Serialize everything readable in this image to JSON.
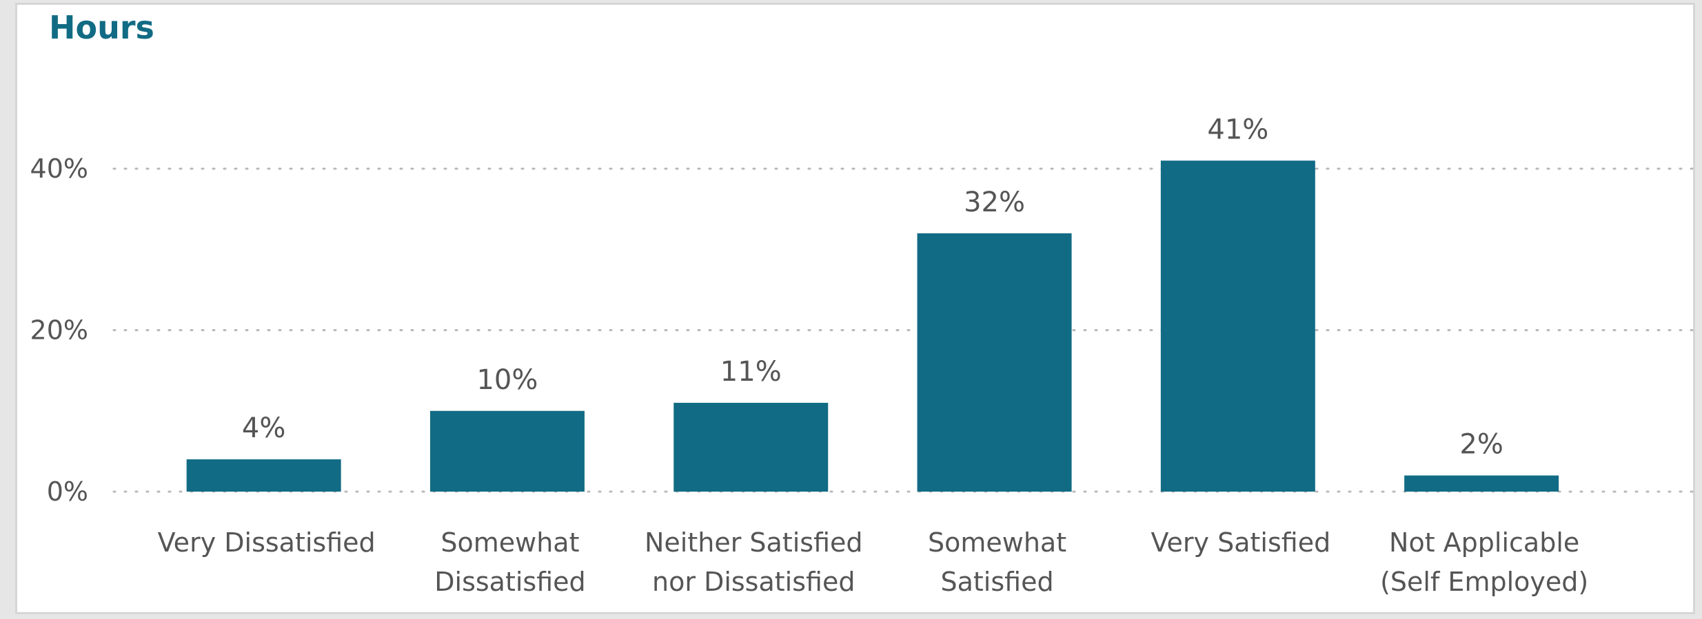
{
  "chart_data": {
    "type": "bar",
    "title": "Hours",
    "categories": [
      [
        "Very Dissatisfied"
      ],
      [
        "Somewhat",
        "Dissatisfied"
      ],
      [
        "Neither Satisfied",
        "nor Dissatisfied"
      ],
      [
        "Somewhat",
        "Satisfied"
      ],
      [
        "Very Satisfied"
      ],
      [
        "Not Applicable",
        "(Self Employed)"
      ]
    ],
    "values": [
      4,
      10,
      11,
      32,
      41,
      2
    ],
    "value_labels": [
      "4%",
      "10%",
      "11%",
      "32%",
      "41%",
      "2%"
    ],
    "yticks": [
      0,
      20,
      40
    ],
    "ytick_labels": [
      "0%",
      "20%",
      "40%"
    ],
    "ylim": [
      0,
      45
    ],
    "grid": "horizontal dotted",
    "bar_color": "#126b84",
    "grid_color": "#b8b8b8",
    "text_color": "#555555"
  }
}
